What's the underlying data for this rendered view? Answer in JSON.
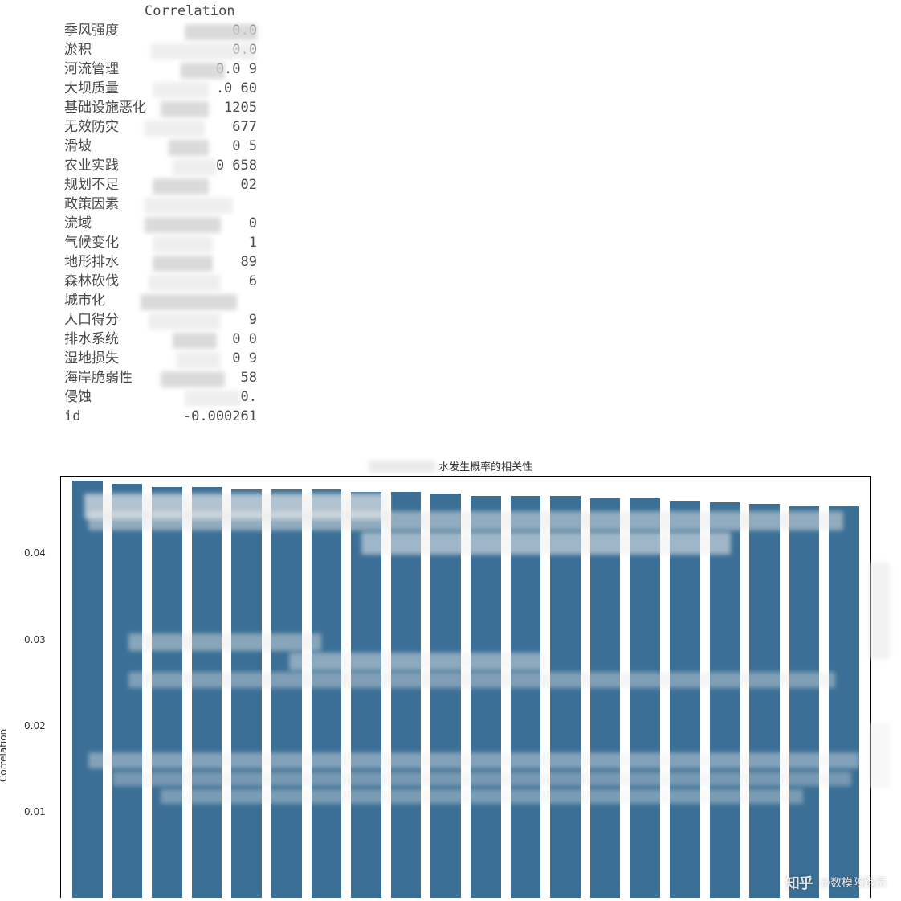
{
  "table": {
    "header": "Correlation",
    "rows": [
      {
        "label": "季风强度",
        "value": "0.0"
      },
      {
        "label": "淤积",
        "value": "0.0"
      },
      {
        "label": "河流管理",
        "value": "0.0   9"
      },
      {
        "label": "大坝质量",
        "value": ".0   60"
      },
      {
        "label": "基础设施恶化",
        "value": "    1205"
      },
      {
        "label": "无效防灾",
        "value": "   677"
      },
      {
        "label": "滑坡",
        "value": "0    5"
      },
      {
        "label": "农业实践",
        "value": "0    658"
      },
      {
        "label": "规划不足",
        "value": "    02"
      },
      {
        "label": "政策因素",
        "value": ""
      },
      {
        "label": "流域",
        "value": "0"
      },
      {
        "label": "气候变化",
        "value": "1"
      },
      {
        "label": "地形排水",
        "value": "89"
      },
      {
        "label": "森林砍伐",
        "value": "6"
      },
      {
        "label": "城市化",
        "value": ""
      },
      {
        "label": "人口得分",
        "value": "9"
      },
      {
        "label": "排水系统",
        "value": "0    0"
      },
      {
        "label": "湿地损失",
        "value": "0    9"
      },
      {
        "label": "海岸脆弱性",
        "value": "   58"
      },
      {
        "label": "侵蚀",
        "value": "0."
      },
      {
        "label": "id",
        "value": "-0.000261"
      }
    ]
  },
  "chart": {
    "type": "bar",
    "title": "水发生概率的相关性",
    "title_prefix_obscured": "各",
    "ylabel": "Correlation",
    "title_fontsize": 13,
    "label_fontsize": 12,
    "bar_color": "#3b6f95",
    "background_color": "#ffffff",
    "border_color": "#000000",
    "ylim": [
      0,
      0.049
    ],
    "yticks": [
      {
        "val": 0.01,
        "label": "0.01"
      },
      {
        "val": 0.02,
        "label": "0.02"
      },
      {
        "val": 0.03,
        "label": "0.03"
      },
      {
        "val": 0.04,
        "label": "0.04"
      }
    ],
    "values": [
      0.0485,
      0.0482,
      0.0478,
      0.0478,
      0.0475,
      0.0475,
      0.0475,
      0.0472,
      0.0472,
      0.047,
      0.0468,
      0.0468,
      0.0468,
      0.0465,
      0.0465,
      0.0462,
      0.046,
      0.0458,
      0.0455,
      0.0455
    ],
    "n_bars": 20
  },
  "watermark": {
    "logo": "知乎",
    "text": "@数模陪跑员"
  }
}
